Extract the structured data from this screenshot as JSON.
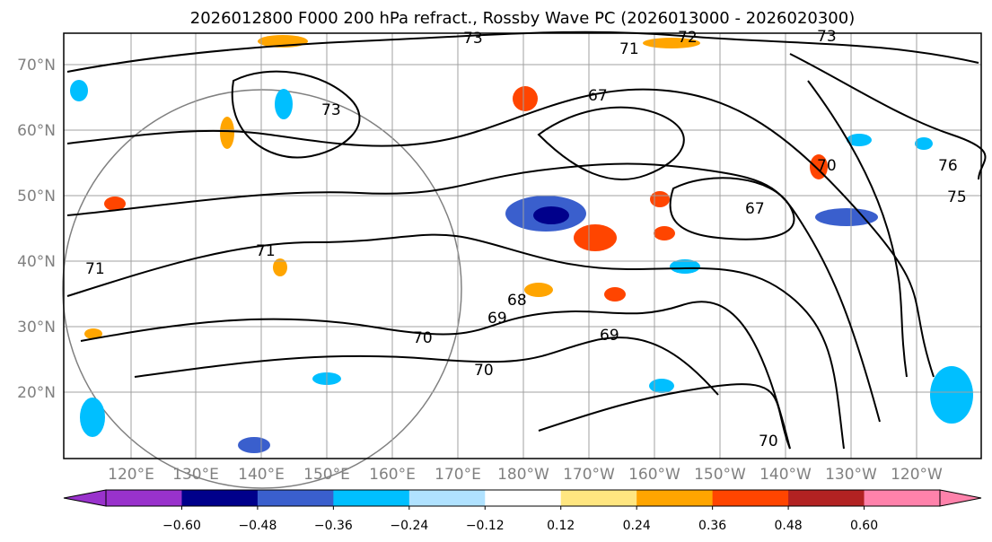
{
  "title": "2026012800 F000 200 hPa refract., Rossby Wave PC (2026013000 - 2026020300)",
  "chart_data": {
    "type": "map",
    "title": "2026012800 F000 200 hPa refract., Rossby Wave PC (2026013000 - 2026020300)",
    "lat_ticks": [
      "20°N",
      "30°N",
      "40°N",
      "50°N",
      "60°N",
      "70°N"
    ],
    "lon_ticks": [
      "120°E",
      "130°E",
      "140°E",
      "150°E",
      "160°E",
      "170°E",
      "180°W",
      "170°W",
      "160°W",
      "150°W",
      "140°W",
      "130°W",
      "120°W"
    ],
    "contour_labels": [
      "73",
      "72",
      "73",
      "71",
      "67",
      "73",
      "76",
      "75",
      "70",
      "67",
      "71",
      "68",
      "69",
      "70",
      "69",
      "70",
      "70",
      "71"
    ],
    "colorbar": {
      "ticks": [
        "−0.60",
        "−0.48",
        "−0.36",
        "−0.24",
        "−0.12",
        "0.12",
        "0.24",
        "0.36",
        "0.48",
        "0.60"
      ],
      "colors": [
        "#9932cc",
        "#00008b",
        "#3a5fcd",
        "#00bfff",
        "#b0e2ff",
        "#ffffff",
        "#ffe680",
        "#ffa500",
        "#ff4500",
        "#b22222",
        "#ff82ab"
      ]
    }
  }
}
